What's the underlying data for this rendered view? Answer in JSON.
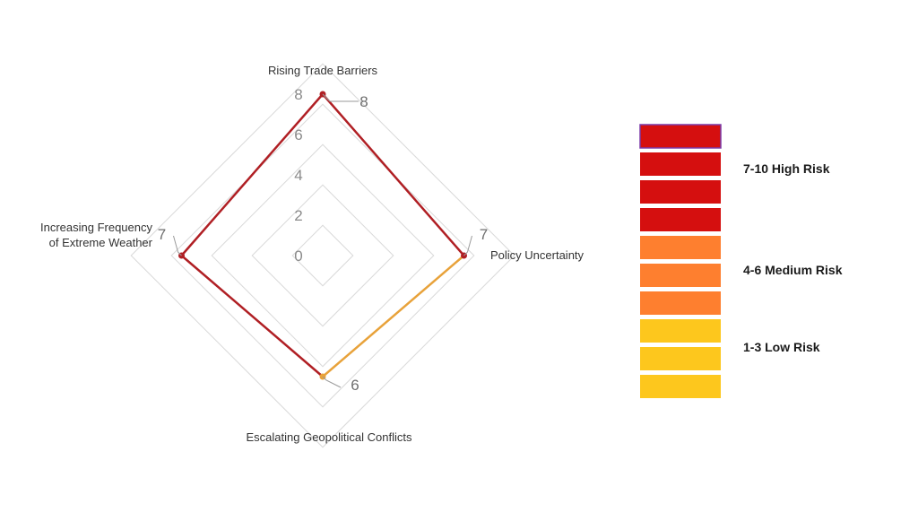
{
  "chart_data": {
    "type": "radar",
    "axes": [
      "Rising Trade Barriers",
      "Policy Uncertainty",
      "Escalating Geopolitical Conflicts",
      "Increasing Frequency of Extreme Weather"
    ],
    "values": [
      8,
      7,
      6,
      7
    ],
    "value_labels": [
      "8",
      "7",
      "6",
      "7"
    ],
    "range": [
      0,
      8
    ],
    "ticks": [
      0,
      2,
      4,
      6,
      8
    ],
    "tick_labels": [
      "0",
      "2",
      "4",
      "6",
      "8"
    ],
    "grid": true,
    "colors": {
      "high": "#b01f24",
      "medium_segment": "#e8a23a",
      "grid": "#d9d9d9"
    }
  },
  "legend": {
    "blocks": [
      {
        "color": "#d50f0f",
        "border": "#7b3aa8"
      },
      {
        "color": "#d50f0f"
      },
      {
        "color": "#d50f0f"
      },
      {
        "color": "#d50f0f"
      },
      {
        "color": "#fe7f2f"
      },
      {
        "color": "#fe7f2f"
      },
      {
        "color": "#fe7f2f"
      },
      {
        "color": "#fdc71d"
      },
      {
        "color": "#fdc71d"
      },
      {
        "color": "#fdc71d"
      }
    ],
    "labels": [
      {
        "text": "7-10  High Risk"
      },
      {
        "text": "4-6 Medium Risk"
      },
      {
        "text": "1-3 Low Risk"
      }
    ]
  }
}
